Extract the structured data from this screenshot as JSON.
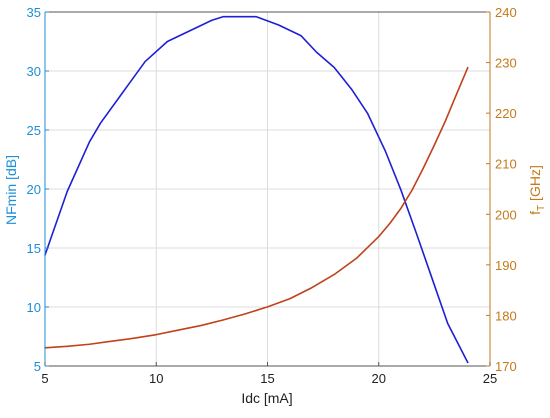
{
  "chart_data": {
    "type": "line",
    "title": "",
    "xlabel": "Idc [mA]",
    "ylabel_left": "NFmin [dB]",
    "ylabel_right_main": "f",
    "ylabel_right_sub": "T",
    "ylabel_right_suffix": " [GHz]",
    "xlim": [
      5,
      25
    ],
    "ylim_left": [
      5,
      35
    ],
    "ylim_right": [
      170,
      240
    ],
    "x_ticks": [
      5,
      10,
      15,
      20,
      25
    ],
    "y_ticks_left": [
      5,
      10,
      15,
      20,
      25,
      30,
      35
    ],
    "y_ticks_right": [
      170,
      180,
      190,
      200,
      210,
      220,
      230,
      240
    ],
    "grid": true,
    "legend": "none",
    "series": [
      {
        "axis": "left",
        "color": "#1f1fd6",
        "x": [
          5,
          6,
          7,
          7.5,
          8.5,
          9.5,
          10.5,
          11.5,
          12.5,
          13,
          13.5,
          14.5,
          15.5,
          16.5,
          17.2,
          18,
          18.8,
          19.5,
          20.3,
          21,
          21.7,
          22.4,
          23.1,
          24
        ],
        "y": [
          14.4,
          19.8,
          24,
          25.6,
          28.2,
          30.8,
          32.5,
          33.4,
          34.3,
          34.6,
          34.6,
          34.6,
          33.9,
          33,
          31.6,
          30.3,
          28.4,
          26.4,
          23.2,
          19.9,
          16.2,
          12.4,
          8.6,
          5.3
        ]
      },
      {
        "axis": "right",
        "color": "#c0421a",
        "x": [
          5,
          6,
          7,
          8,
          9,
          10,
          11,
          12,
          13,
          14,
          15,
          16,
          17,
          18,
          19,
          20,
          20.5,
          21,
          21.5,
          22,
          22.5,
          23,
          23.5,
          24
        ],
        "y": [
          173.6,
          173.9,
          174.3,
          174.9,
          175.5,
          176.2,
          177.1,
          178,
          179.1,
          180.3,
          181.7,
          183.3,
          185.5,
          188.1,
          191.3,
          195.6,
          198.2,
          201.2,
          204.8,
          209.1,
          213.7,
          218.5,
          223.8,
          229
        ]
      }
    ],
    "colors": {
      "left_axis": "#1d8fd6",
      "right_axis": "#c47a19",
      "grid": "#dcdcdc",
      "axes": "#555555"
    }
  }
}
